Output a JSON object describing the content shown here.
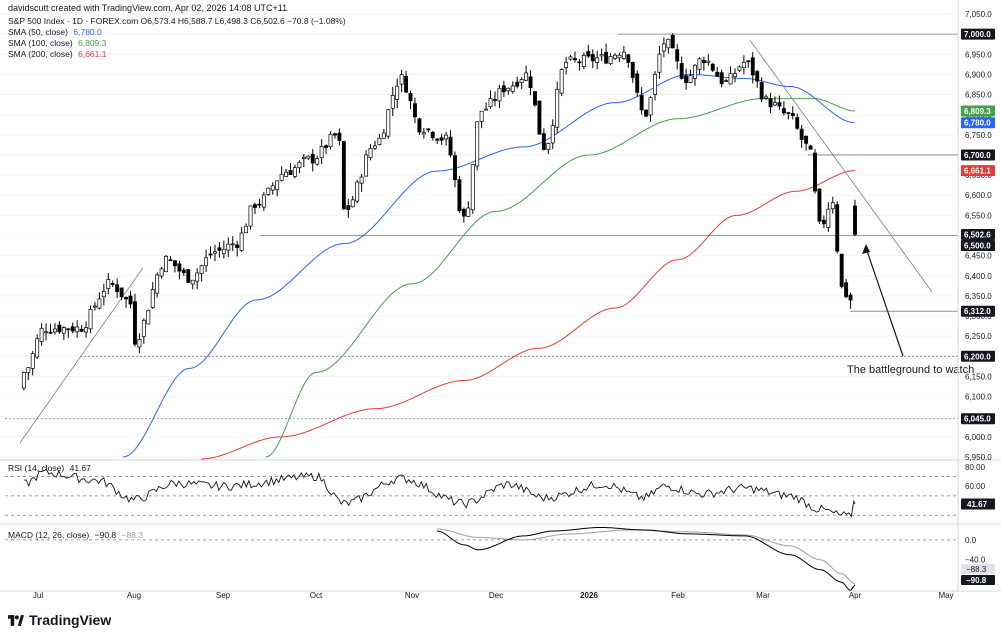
{
  "header": {
    "credit": "davidscutt created with TradingView.com, Apr 02, 2026 14:08 UTC+11",
    "symbol_line": "S&P 500 Index · 1D · FOREX.com  O6,573.4  H6,588.7  L6,498.3  C6,502.6  −70.8 (−1.08%)",
    "sma50_label": "SMA (50, close)",
    "sma50_value": "6,780.0",
    "sma100_label": "SMA (100, close)",
    "sma100_value": "6,809.3",
    "sma200_label": "SMA (200, close)",
    "sma200_value": "6,661.1"
  },
  "rsi_header": {
    "label": "RSI (14, close)",
    "value": "41.67"
  },
  "macd_header": {
    "label": "MACD (12, 26, close)",
    "value": "−90.8",
    "signal": "−88.3"
  },
  "annotation": "The battleground to watch",
  "logo_text": "TradingView",
  "colors": {
    "up": "#ffffff",
    "down": "#000000",
    "wick": "#000000",
    "sma50": "#2962ff",
    "sma100": "#43a047",
    "sma200": "#e53935",
    "level": "#787b86",
    "grid": "#f0f3fa",
    "axis_text": "#131722",
    "macd": "#000000",
    "signal": "#9e9e9e"
  },
  "chart_data": {
    "type": "candlestick",
    "x_tick_labels": [
      "Jul",
      "Aug",
      "Sep",
      "Oct",
      "Nov",
      "Dec",
      "2026",
      "Feb",
      "Mar",
      "Apr",
      "May"
    ],
    "y_tick_labels": [
      "7,050.0",
      "7,000.0",
      "6,950.0",
      "6,900.0",
      "6,850.0",
      "6,800.0",
      "6,750.0",
      "6,700.0",
      "6,650.0",
      "6,600.0",
      "6,550.0",
      "6,500.0",
      "6,450.0",
      "6,400.0",
      "6,350.0",
      "6,300.0",
      "6,250.0",
      "6,200.0",
      "6,150.0",
      "6,100.0",
      "6,050.0",
      "6,000.0",
      "5,950.0"
    ],
    "ylim": [
      5945,
      7055
    ],
    "horizontal_levels": [
      7000.0,
      6700.0,
      6500.0,
      6312.0,
      6200.0,
      6045.0
    ],
    "price_labels": [
      {
        "text": "7,000.0",
        "value": 7000.0,
        "style": "level"
      },
      {
        "text": "6,809.3",
        "value": 6809.3,
        "style": "sma100"
      },
      {
        "text": "6,780.0",
        "value": 6780.0,
        "style": "sma50"
      },
      {
        "text": "6,700.0",
        "value": 6700.0,
        "style": "level"
      },
      {
        "text": "6,661.1",
        "value": 6661.1,
        "style": "sma200"
      },
      {
        "text": "6,502.6",
        "value": 6502.6,
        "style": "level"
      },
      {
        "text": "6,500.0",
        "value": 6500.0,
        "style": "level"
      },
      {
        "text": "6,312.0",
        "value": 6312.0,
        "style": "level"
      },
      {
        "text": "6,200.0",
        "value": 6200.0,
        "style": "level"
      },
      {
        "text": "6,045.0",
        "value": 6045.0,
        "style": "level"
      }
    ],
    "close_key_points": [
      [
        "Jun 27",
        6160
      ],
      [
        "Jul 3",
        6270
      ],
      [
        "Jul 14",
        6270
      ],
      [
        "Jul 24",
        6380
      ],
      [
        "Jul 31",
        6330
      ],
      [
        "Aug 1",
        6240
      ],
      [
        "Aug 12",
        6440
      ],
      [
        "Aug 20",
        6395
      ],
      [
        "Aug 29",
        6460
      ],
      [
        "Sep 5",
        6480
      ],
      [
        "Sep 12",
        6580
      ],
      [
        "Sep 22",
        6660
      ],
      [
        "Sep 30",
        6690
      ],
      [
        "Oct 8",
        6750
      ],
      [
        "Oct 10",
        6560
      ],
      [
        "Oct 20",
        6730
      ],
      [
        "Oct 28",
        6890
      ],
      [
        "Nov 4",
        6770
      ],
      [
        "Nov 13",
        6740
      ],
      [
        "Nov 20",
        6540
      ],
      [
        "Nov 26",
        6810
      ],
      [
        "Dec 5",
        6870
      ],
      [
        "Dec 11",
        6900
      ],
      [
        "Dec 17",
        6720
      ],
      [
        "Dec 24",
        6930
      ],
      [
        "Jan 6",
        6940
      ],
      [
        "Jan 13",
        6960
      ],
      [
        "Jan 20",
        6800
      ],
      [
        "Jan 27",
        6980
      ],
      [
        "Feb 4",
        6890
      ],
      [
        "Feb 10",
        6940
      ],
      [
        "Feb 18",
        6880
      ],
      [
        "Feb 25",
        6930
      ],
      [
        "Mar 3",
        6830
      ],
      [
        "Mar 9",
        6800
      ],
      [
        "Mar 16",
        6720
      ],
      [
        "Mar 20",
        6520
      ],
      [
        "Mar 24",
        6590
      ],
      [
        "Mar 27",
        6370
      ],
      [
        "Mar 30",
        6340
      ],
      [
        "Mar 31",
        6580
      ],
      [
        "Apr 1",
        6502.6
      ]
    ],
    "sma50_key_points": [
      [
        "Jul 28",
        5950
      ],
      [
        "Aug 20",
        6170
      ],
      [
        "Sep 12",
        6340
      ],
      [
        "Oct 10",
        6480
      ],
      [
        "Nov 10",
        6660
      ],
      [
        "Dec 10",
        6720
      ],
      [
        "Jan 10",
        6830
      ],
      [
        "Feb 5",
        6900
      ],
      [
        "Feb 25",
        6890
      ],
      [
        "Mar 10",
        6870
      ],
      [
        "Apr 1",
        6780.0
      ]
    ],
    "sma100_key_points": [
      [
        "Sep 15",
        5950
      ],
      [
        "Oct 1",
        6160
      ],
      [
        "Nov 1",
        6380
      ],
      [
        "Dec 1",
        6560
      ],
      [
        "Jan 1",
        6700
      ],
      [
        "Feb 1",
        6790
      ],
      [
        "Mar 1",
        6840
      ],
      [
        "Mar 18",
        6840
      ],
      [
        "Apr 1",
        6809.3
      ]
    ],
    "sma200_key_points": [
      [
        "Aug 24",
        5945
      ],
      [
        "Sep 20",
        6000
      ],
      [
        "Oct 20",
        6070
      ],
      [
        "Nov 20",
        6140
      ],
      [
        "Dec 15",
        6220
      ],
      [
        "Jan 10",
        6320
      ],
      [
        "Feb 1",
        6440
      ],
      [
        "Feb 22",
        6550
      ],
      [
        "Mar 12",
        6610
      ],
      [
        "Apr 1",
        6661.1
      ]
    ],
    "rsi": {
      "ylim": [
        22,
        86
      ],
      "levels": [
        70,
        50,
        30
      ],
      "tick_labels": [
        "80.00",
        "60.00"
      ],
      "last": 41.67,
      "key_points": [
        [
          "Jun 27",
          62
        ],
        [
          "Jul 3",
          74
        ],
        [
          "Jul 20",
          66
        ],
        [
          "Aug 1",
          46
        ],
        [
          "Aug 15",
          63
        ],
        [
          "Sep 1",
          60
        ],
        [
          "Oct 1",
          70
        ],
        [
          "Oct 10",
          42
        ],
        [
          "Oct 28",
          68
        ],
        [
          "Nov 20",
          42
        ],
        [
          "Dec 5",
          62
        ],
        [
          "Dec 17",
          48
        ],
        [
          "Jan 6",
          62
        ],
        [
          "Jan 20",
          48
        ],
        [
          "Jan 27",
          60
        ],
        [
          "Feb 10",
          52
        ],
        [
          "Feb 25",
          58
        ],
        [
          "Mar 10",
          50
        ],
        [
          "Mar 20",
          36
        ],
        [
          "Mar 27",
          30
        ],
        [
          "Mar 30",
          28
        ],
        [
          "Mar 31",
          45
        ],
        [
          "Apr 1",
          41.67
        ]
      ]
    },
    "macd": {
      "ylim": [
        -105,
        30
      ],
      "tick_labels": [
        "0.0",
        "−40.0",
        "−88.3",
        "−90.8"
      ],
      "macd_last": -90.8,
      "signal_last": -88.3,
      "macd_key_points": [
        [
          "Nov 10",
          18
        ],
        [
          "Nov 20",
          -10
        ],
        [
          "Nov 25",
          -20
        ],
        [
          "Dec 10",
          8
        ],
        [
          "Dec 20",
          18
        ],
        [
          "Jan 5",
          25
        ],
        [
          "Jan 20",
          20
        ],
        [
          "Feb 5",
          12
        ],
        [
          "Feb 25",
          8
        ],
        [
          "Mar 10",
          -30
        ],
        [
          "Mar 20",
          -60
        ],
        [
          "Mar 27",
          -85
        ],
        [
          "Mar 30",
          -102
        ],
        [
          "Apr 1",
          -90.8
        ]
      ],
      "signal_key_points": [
        [
          "Nov 10",
          22
        ],
        [
          "Nov 25",
          5
        ],
        [
          "Dec 10",
          0
        ],
        [
          "Dec 25",
          12
        ],
        [
          "Jan 15",
          20
        ],
        [
          "Feb 5",
          16
        ],
        [
          "Feb 25",
          10
        ],
        [
          "Mar 10",
          -12
        ],
        [
          "Mar 20",
          -40
        ],
        [
          "Mar 27",
          -68
        ],
        [
          "Apr 1",
          -88.3
        ]
      ]
    }
  }
}
